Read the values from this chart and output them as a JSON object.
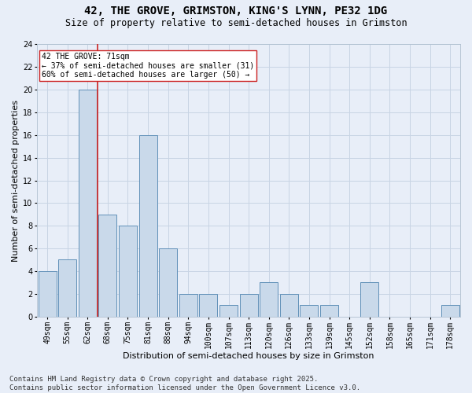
{
  "title_line1": "42, THE GROVE, GRIMSTON, KING'S LYNN, PE32 1DG",
  "title_line2": "Size of property relative to semi-detached houses in Grimston",
  "xlabel": "Distribution of semi-detached houses by size in Grimston",
  "ylabel": "Number of semi-detached properties",
  "categories": [
    "49sqm",
    "55sqm",
    "62sqm",
    "68sqm",
    "75sqm",
    "81sqm",
    "88sqm",
    "94sqm",
    "100sqm",
    "107sqm",
    "113sqm",
    "120sqm",
    "126sqm",
    "133sqm",
    "139sqm",
    "145sqm",
    "152sqm",
    "158sqm",
    "165sqm",
    "171sqm",
    "178sqm"
  ],
  "values": [
    4,
    5,
    20,
    9,
    8,
    16,
    6,
    2,
    2,
    1,
    2,
    3,
    2,
    1,
    1,
    0,
    3,
    0,
    0,
    0,
    1
  ],
  "bar_color": "#c9d9ea",
  "bar_edge_color": "#6090b8",
  "vline_x_index": 2.5,
  "vline_color": "#cc2222",
  "annotation_text": "42 THE GROVE: 71sqm\n← 37% of semi-detached houses are smaller (31)\n60% of semi-detached houses are larger (50) →",
  "annotation_box_color": "#ffffff",
  "annotation_box_edge": "#cc2222",
  "ylim": [
    0,
    24
  ],
  "yticks": [
    0,
    2,
    4,
    6,
    8,
    10,
    12,
    14,
    16,
    18,
    20,
    22,
    24
  ],
  "grid_color": "#c8d4e4",
  "background_color": "#e8eef8",
  "footer_line1": "Contains HM Land Registry data © Crown copyright and database right 2025.",
  "footer_line2": "Contains public sector information licensed under the Open Government Licence v3.0.",
  "title_fontsize": 10,
  "subtitle_fontsize": 8.5,
  "axis_label_fontsize": 8,
  "tick_fontsize": 7,
  "annotation_fontsize": 7,
  "footer_fontsize": 6.5
}
